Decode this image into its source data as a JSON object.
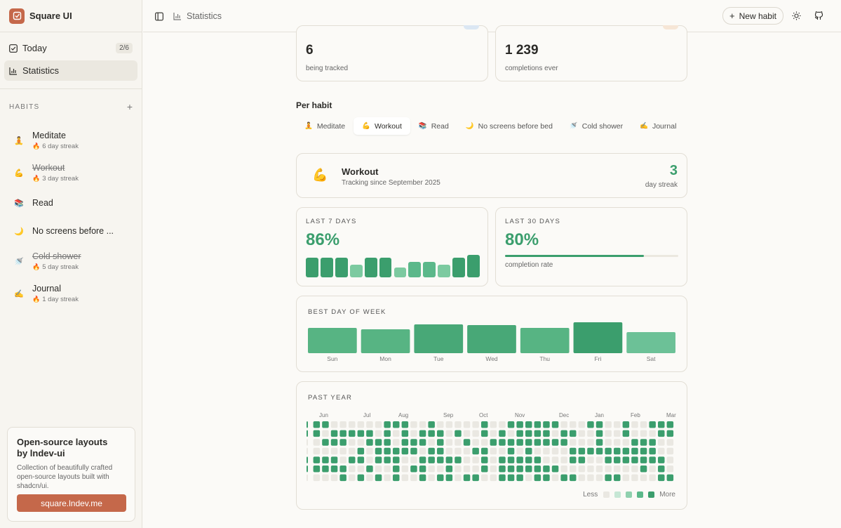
{
  "app": {
    "name": "Square UI"
  },
  "nav": {
    "today": {
      "label": "Today",
      "badge": "2/6"
    },
    "statistics": {
      "label": "Statistics"
    }
  },
  "habits_section": {
    "title": "HABITS"
  },
  "habits": [
    {
      "emoji": "🧘",
      "name": "Meditate",
      "streak": "6 day streak",
      "done": false
    },
    {
      "emoji": "💪",
      "name": "Workout",
      "streak": "3 day streak",
      "done": true
    },
    {
      "emoji": "📚",
      "name": "Read",
      "streak": "",
      "done": false
    },
    {
      "emoji": "🌙",
      "name": "No screens before ...",
      "streak": "",
      "done": false
    },
    {
      "emoji": "🚿",
      "name": "Cold shower",
      "streak": "5 day streak",
      "done": true
    },
    {
      "emoji": "✍️",
      "name": "Journal",
      "streak": "1 day streak",
      "done": false
    }
  ],
  "promo": {
    "title": "Open-source layouts by lndev-ui",
    "desc": "Collection of beautifully crafted open-source layouts built with shadcn/ui.",
    "button": "square.lndev.me"
  },
  "header": {
    "breadcrumb": "Statistics",
    "new_habit": "New habit"
  },
  "summary": {
    "habits": {
      "value": "6",
      "sub": "being tracked"
    },
    "total": {
      "value": "1 239",
      "sub": "completions ever"
    }
  },
  "per_habit": {
    "title": "Per habit",
    "tabs": [
      {
        "emoji": "🧘",
        "label": "Meditate",
        "active": false
      },
      {
        "emoji": "💪",
        "label": "Workout",
        "active": true
      },
      {
        "emoji": "📚",
        "label": "Read",
        "active": false
      },
      {
        "emoji": "🌙",
        "label": "No screens before bed",
        "active": false
      },
      {
        "emoji": "🚿",
        "label": "Cold shower",
        "active": false
      },
      {
        "emoji": "✍️",
        "label": "Journal",
        "active": false
      }
    ]
  },
  "habit_detail": {
    "emoji": "💪",
    "name": "Workout",
    "since": "Tracking since September 2025",
    "streak_value": "3",
    "streak_label": "day streak"
  },
  "last7": {
    "label": "LAST 7 DAYS",
    "value": "86%",
    "bars": [
      1.0,
      1.0,
      1.0,
      0.65,
      1.0,
      1.0,
      0.5,
      0.8,
      0.8,
      0.65,
      1.0,
      1.0
    ]
  },
  "last30": {
    "label": "LAST 30 DAYS",
    "value": "80%",
    "progress": 0.8,
    "sub": "completion rate"
  },
  "best_day": {
    "label": "BEST DAY OF WEEK",
    "chart_data": {
      "type": "bar",
      "categories": [
        "Sun",
        "Mon",
        "Tue",
        "Wed",
        "Thu",
        "Fri",
        "Sat"
      ],
      "values": [
        36,
        34,
        41,
        40,
        36,
        44,
        30
      ]
    }
  },
  "past_year": {
    "label": "PAST YEAR",
    "months": [
      "Jun",
      "Jul",
      "Aug",
      "Sep",
      "Oct",
      "Nov",
      "Dec",
      "Jan",
      "Feb",
      "Mar"
    ],
    "legend_less": "Less",
    "legend_more": "More"
  },
  "colors": {
    "accent": "#c5684a",
    "green": "#3b9e6d",
    "green_light": "#6cc197",
    "cell_empty": "#eae8e2"
  }
}
